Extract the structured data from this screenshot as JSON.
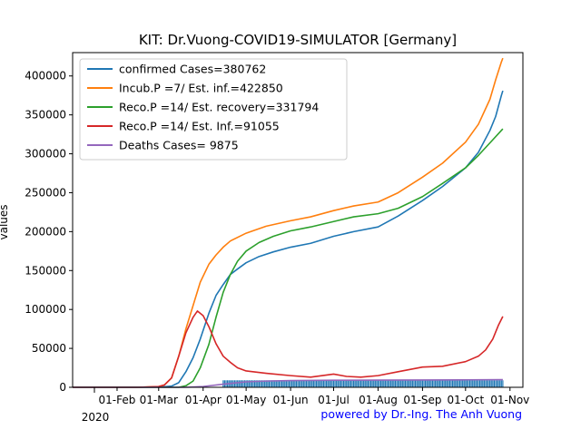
{
  "chart_data": {
    "type": "line",
    "title": "KIT: Dr.Vuong-COVID19-SIMULATOR [Germany]",
    "ylabel": "values",
    "xlabel": "",
    "year_label": "2020",
    "credit": "powered by Dr.-Ing. The Anh Vuong",
    "colors": {
      "credit": "#0000ff",
      "axis": "#000000",
      "background": "#ffffff",
      "bars": "#1f77b4"
    },
    "legend_position": "top-left",
    "grid": false,
    "x_axis": {
      "type": "date",
      "range": [
        "2020-01-01",
        "2020-11-10"
      ]
    },
    "ylim": [
      0,
      430000
    ],
    "yticks": [
      0,
      50000,
      100000,
      150000,
      200000,
      250000,
      300000,
      350000,
      400000
    ],
    "ytick_labels": [
      "0",
      "50000",
      "100000",
      "150000",
      "200000",
      "250000",
      "300000",
      "350000",
      "400000"
    ],
    "xticks": [
      "2020-02-01",
      "2020-03-01",
      "2020-04-01",
      "2020-05-01",
      "2020-06-01",
      "2020-07-01",
      "2020-08-01",
      "2020-09-01",
      "2020-10-01",
      "2020-11-01"
    ],
    "xtick_labels": [
      "01-Feb",
      "01-Mar",
      "01-Apr",
      "01-May",
      "01-Jun",
      "01-Jul",
      "01-Aug",
      "01-Sep",
      "01-Oct",
      "01-Nov"
    ],
    "series": [
      {
        "name": "confirmed Cases=380762",
        "color": "#1f77b4",
        "points": [
          [
            "2020-01-01",
            0
          ],
          [
            "2020-02-15",
            0
          ],
          [
            "2020-03-01",
            150
          ],
          [
            "2020-03-10",
            1500
          ],
          [
            "2020-03-15",
            6000
          ],
          [
            "2020-03-20",
            20000
          ],
          [
            "2020-03-25",
            38000
          ],
          [
            "2020-03-30",
            62000
          ],
          [
            "2020-04-05",
            95000
          ],
          [
            "2020-04-10",
            118000
          ],
          [
            "2020-04-15",
            132000
          ],
          [
            "2020-04-20",
            145000
          ],
          [
            "2020-04-25",
            152000
          ],
          [
            "2020-05-01",
            160000
          ],
          [
            "2020-05-10",
            168000
          ],
          [
            "2020-05-20",
            174000
          ],
          [
            "2020-06-01",
            180000
          ],
          [
            "2020-06-15",
            185000
          ],
          [
            "2020-07-01",
            194000
          ],
          [
            "2020-07-15",
            200000
          ],
          [
            "2020-08-01",
            206000
          ],
          [
            "2020-08-15",
            220000
          ],
          [
            "2020-09-01",
            240000
          ],
          [
            "2020-09-15",
            258000
          ],
          [
            "2020-10-01",
            282000
          ],
          [
            "2020-10-10",
            302000
          ],
          [
            "2020-10-18",
            330000
          ],
          [
            "2020-10-22",
            348000
          ],
          [
            "2020-10-26",
            375000
          ],
          [
            "2020-10-27",
            381000
          ]
        ]
      },
      {
        "name": "Incub.P =7/ Est. inf.=422850",
        "color": "#ff7f0e",
        "points": [
          [
            "2020-01-01",
            0
          ],
          [
            "2020-02-15",
            0
          ],
          [
            "2020-03-01",
            1000
          ],
          [
            "2020-03-05",
            3000
          ],
          [
            "2020-03-10",
            12000
          ],
          [
            "2020-03-15",
            40000
          ],
          [
            "2020-03-20",
            75000
          ],
          [
            "2020-03-25",
            105000
          ],
          [
            "2020-03-30",
            135000
          ],
          [
            "2020-04-05",
            158000
          ],
          [
            "2020-04-10",
            170000
          ],
          [
            "2020-04-15",
            180000
          ],
          [
            "2020-04-20",
            188000
          ],
          [
            "2020-05-01",
            198000
          ],
          [
            "2020-05-15",
            207000
          ],
          [
            "2020-06-01",
            214000
          ],
          [
            "2020-06-15",
            219000
          ],
          [
            "2020-07-01",
            227000
          ],
          [
            "2020-07-15",
            233000
          ],
          [
            "2020-08-01",
            238000
          ],
          [
            "2020-08-15",
            250000
          ],
          [
            "2020-09-01",
            270000
          ],
          [
            "2020-09-15",
            288000
          ],
          [
            "2020-10-01",
            315000
          ],
          [
            "2020-10-10",
            338000
          ],
          [
            "2020-10-18",
            370000
          ],
          [
            "2020-10-22",
            395000
          ],
          [
            "2020-10-26",
            418000
          ],
          [
            "2020-10-27",
            422850
          ]
        ]
      },
      {
        "name": "Reco.P =14/ Est. recovery=331794",
        "color": "#2ca02c",
        "points": [
          [
            "2020-01-01",
            0
          ],
          [
            "2020-03-15",
            0
          ],
          [
            "2020-03-20",
            2000
          ],
          [
            "2020-03-25",
            8000
          ],
          [
            "2020-03-30",
            25000
          ],
          [
            "2020-04-05",
            55000
          ],
          [
            "2020-04-10",
            90000
          ],
          [
            "2020-04-15",
            122000
          ],
          [
            "2020-04-20",
            145000
          ],
          [
            "2020-04-25",
            162000
          ],
          [
            "2020-05-01",
            175000
          ],
          [
            "2020-05-10",
            186000
          ],
          [
            "2020-05-20",
            194000
          ],
          [
            "2020-06-01",
            201000
          ],
          [
            "2020-06-15",
            206000
          ],
          [
            "2020-07-01",
            213000
          ],
          [
            "2020-07-15",
            219000
          ],
          [
            "2020-08-01",
            223000
          ],
          [
            "2020-08-15",
            230000
          ],
          [
            "2020-09-01",
            245000
          ],
          [
            "2020-09-15",
            262000
          ],
          [
            "2020-10-01",
            282000
          ],
          [
            "2020-10-10",
            298000
          ],
          [
            "2020-10-20",
            318000
          ],
          [
            "2020-10-27",
            332000
          ]
        ]
      },
      {
        "name": "Reco.P =14/ Est. Inf.=91055",
        "color": "#d62728",
        "points": [
          [
            "2020-01-01",
            0
          ],
          [
            "2020-02-15",
            0
          ],
          [
            "2020-03-01",
            1000
          ],
          [
            "2020-03-05",
            3000
          ],
          [
            "2020-03-10",
            12000
          ],
          [
            "2020-03-15",
            40000
          ],
          [
            "2020-03-20",
            70000
          ],
          [
            "2020-03-25",
            90000
          ],
          [
            "2020-03-28",
            98000
          ],
          [
            "2020-04-01",
            92000
          ],
          [
            "2020-04-05",
            78000
          ],
          [
            "2020-04-10",
            56000
          ],
          [
            "2020-04-15",
            40000
          ],
          [
            "2020-04-20",
            32000
          ],
          [
            "2020-04-25",
            25000
          ],
          [
            "2020-05-01",
            21000
          ],
          [
            "2020-05-15",
            18000
          ],
          [
            "2020-06-01",
            15000
          ],
          [
            "2020-06-15",
            13000
          ],
          [
            "2020-07-01",
            17000
          ],
          [
            "2020-07-10",
            14000
          ],
          [
            "2020-07-20",
            13000
          ],
          [
            "2020-08-01",
            15000
          ],
          [
            "2020-08-15",
            20000
          ],
          [
            "2020-09-01",
            26000
          ],
          [
            "2020-09-15",
            27000
          ],
          [
            "2020-10-01",
            33000
          ],
          [
            "2020-10-10",
            40000
          ],
          [
            "2020-10-15",
            48000
          ],
          [
            "2020-10-20",
            62000
          ],
          [
            "2020-10-24",
            80000
          ],
          [
            "2020-10-27",
            91055
          ]
        ]
      },
      {
        "name": "Deaths Cases= 9875",
        "color": "#9467bd",
        "points": [
          [
            "2020-01-01",
            0
          ],
          [
            "2020-03-20",
            0
          ],
          [
            "2020-04-01",
            1000
          ],
          [
            "2020-04-15",
            4000
          ],
          [
            "2020-05-01",
            7000
          ],
          [
            "2020-05-15",
            8000
          ],
          [
            "2020-06-01",
            8700
          ],
          [
            "2020-07-01",
            9100
          ],
          [
            "2020-08-01",
            9200
          ],
          [
            "2020-09-01",
            9400
          ],
          [
            "2020-10-01",
            9600
          ],
          [
            "2020-10-27",
            9875
          ]
        ]
      }
    ],
    "daily_bars": {
      "start": "2020-04-15",
      "end": "2020-10-27",
      "label": ""
    }
  }
}
